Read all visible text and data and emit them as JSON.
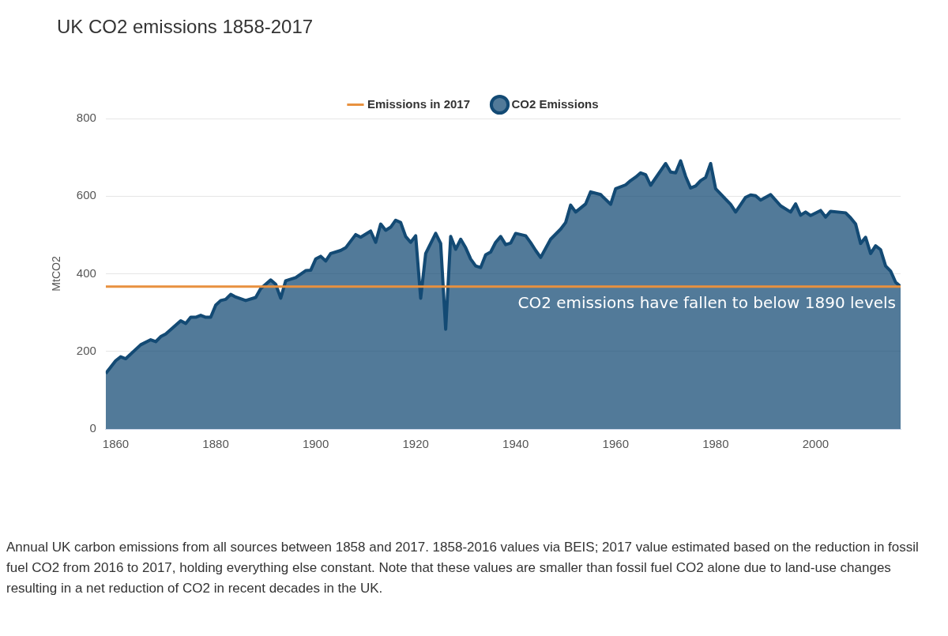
{
  "chart_data": {
    "type": "area",
    "title": "UK CO2 emissions 1858-2017",
    "ylabel": "MtCO2",
    "x": [
      1858,
      1860,
      1861,
      1862,
      1865,
      1867,
      1868,
      1869,
      1870,
      1873,
      1874,
      1875,
      1876,
      1877,
      1878,
      1879,
      1880,
      1881,
      1882,
      1883,
      1884,
      1886,
      1888,
      1889,
      1891,
      1892,
      1893,
      1894,
      1896,
      1898,
      1899,
      1900,
      1901,
      1902,
      1903,
      1905,
      1906,
      1908,
      1909,
      1911,
      1912,
      1913,
      1914,
      1915,
      1916,
      1917,
      1918,
      1919,
      1920,
      1921,
      1922,
      1924,
      1925,
      1926,
      1927,
      1928,
      1929,
      1930,
      1931,
      1932,
      1933,
      1934,
      1935,
      1936,
      1937,
      1938,
      1939,
      1940,
      1942,
      1943,
      1944,
      1945,
      1947,
      1949,
      1950,
      1951,
      1952,
      1954,
      1955,
      1957,
      1959,
      1960,
      1962,
      1963,
      1964,
      1965,
      1966,
      1967,
      1970,
      1971,
      1972,
      1973,
      1974,
      1975,
      1976,
      1977,
      1978,
      1979,
      1980,
      1982,
      1983,
      1984,
      1986,
      1987,
      1988,
      1989,
      1991,
      1993,
      1995,
      1996,
      1997,
      1998,
      1999,
      2001,
      2002,
      2003,
      2006,
      2007,
      2008,
      2009,
      2010,
      2011,
      2012,
      2013,
      2014,
      2015,
      2016,
      2017
    ],
    "series": [
      {
        "name": "CO2 Emissions",
        "color": "#134a74",
        "values": [
          143,
          176,
          186,
          181,
          217,
          230,
          225,
          238,
          245,
          279,
          272,
          288,
          288,
          293,
          288,
          288,
          319,
          331,
          334,
          347,
          340,
          331,
          339,
          362,
          384,
          373,
          337,
          382,
          390,
          408,
          409,
          438,
          445,
          433,
          452,
          460,
          467,
          501,
          494,
          510,
          481,
          528,
          512,
          520,
          538,
          532,
          496,
          481,
          498,
          337,
          452,
          504,
          478,
          257,
          496,
          463,
          489,
          467,
          438,
          420,
          416,
          449,
          456,
          481,
          496,
          475,
          479,
          504,
          498,
          480,
          460,
          442,
          489,
          515,
          532,
          577,
          559,
          580,
          611,
          604,
          579,
          619,
          629,
          640,
          649,
          660,
          655,
          628,
          684,
          662,
          660,
          691,
          651,
          621,
          626,
          640,
          648,
          684,
          619,
          592,
          579,
          559,
          597,
          603,
          601,
          590,
          604,
          575,
          559,
          580,
          551,
          559,
          550,
          563,
          546,
          561,
          557,
          544,
          528,
          478,
          494,
          452,
          472,
          462,
          420,
          407,
          378,
          367
        ]
      },
      {
        "name": "Emissions in 2017",
        "type": "line",
        "color": "#e8913f",
        "x": [
          1858,
          2017
        ],
        "values": [
          367,
          367
        ]
      }
    ],
    "xlim": [
      1858,
      2017
    ],
    "xticks": [
      1860,
      1880,
      1900,
      1920,
      1940,
      1960,
      1980,
      2000
    ],
    "ylim": [
      0,
      800
    ],
    "yticks": [
      0,
      200,
      400,
      600,
      800
    ],
    "grid": "y",
    "legend": "top",
    "marker": "none",
    "annotations": [
      {
        "text": "CO2 emissions have fallen to below 1890 levels",
        "x": 2017,
        "y": 367
      },
      "Annual UK carbon emissions from all sources between 1858 and 2017. 1858-2016 values via BEIS; 2017 value estimated based on the reduction in fossil fuel CO2 from 2016 to 2017, holding everything else constant. Note that these values are smaller than fossil fuel CO2 alone due to land-use changes resulting in a net reduction of CO2 in recent decades in the UK."
    ]
  }
}
